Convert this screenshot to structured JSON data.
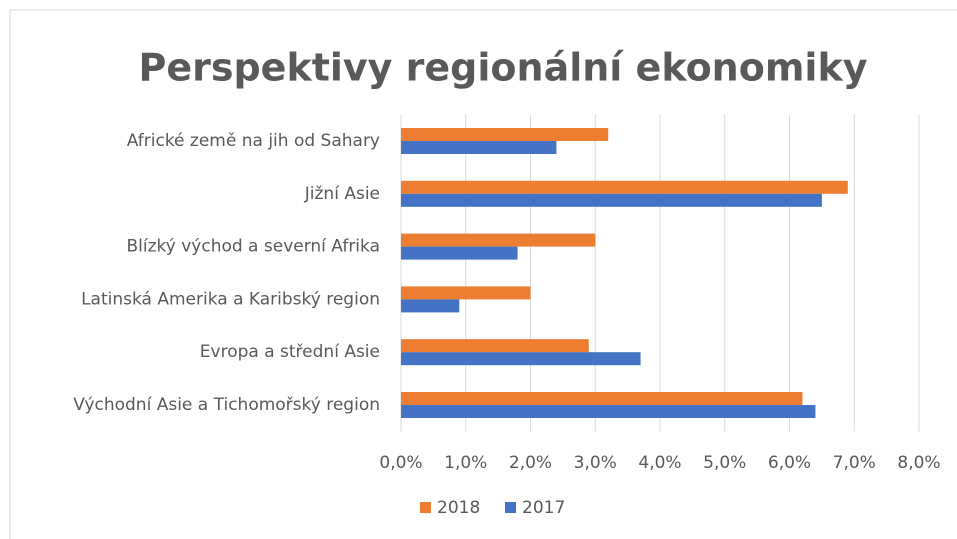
{
  "chart_data": {
    "type": "hbar",
    "title": "Perspektivy regionální ekonomiky",
    "categories": [
      "Africké země na jih od Sahary",
      "Jižní Asie",
      "Blízký východ a severní Afrika",
      "Latinská Amerika a Karibský region",
      "Evropa a střední Asie",
      "Východní Asie a Tichomořský region"
    ],
    "series": [
      {
        "name": "2018",
        "color": "#ed7d31",
        "values": [
          3.2,
          6.9,
          3.0,
          2.0,
          2.9,
          6.2
        ]
      },
      {
        "name": "2017",
        "color": "#4472c4",
        "values": [
          2.4,
          6.5,
          1.8,
          0.9,
          3.7,
          6.4
        ]
      }
    ],
    "xlim": [
      0,
      8
    ],
    "xticks": [
      {
        "value": 0,
        "label": "0,0%"
      },
      {
        "value": 1,
        "label": "1,0%"
      },
      {
        "value": 2,
        "label": "2,0%"
      },
      {
        "value": 3,
        "label": "3,0%"
      },
      {
        "value": 4,
        "label": "4,0%"
      },
      {
        "value": 5,
        "label": "5,0%"
      },
      {
        "value": 6,
        "label": "6,0%"
      },
      {
        "value": 7,
        "label": "7,0%"
      },
      {
        "value": 8,
        "label": "8,0%"
      }
    ],
    "grid": true,
    "legend": "bottom"
  }
}
